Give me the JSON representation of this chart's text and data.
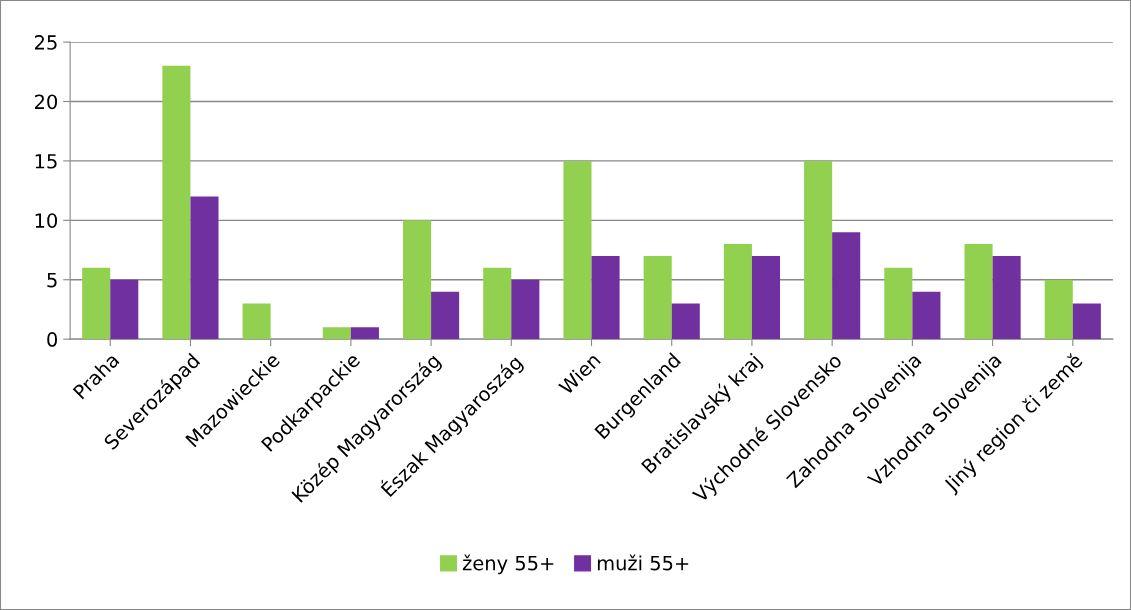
{
  "chart_data": {
    "type": "bar",
    "categories": [
      "Praha",
      "Severozápad",
      "Mazowieckie",
      "Podkarpackie",
      "Közép Magyarország",
      "Észak Magyaroszág",
      "Wien",
      "Burgenland",
      "Bratislavský kraj",
      "Východné Slovensko",
      "Zahodna Slovenija",
      "Vzhodna Slovenija",
      "Jiný region či země"
    ],
    "series": [
      {
        "name": "ženy 55+",
        "color": "#92d050",
        "values": [
          6,
          23,
          3,
          1,
          10,
          6,
          15,
          7,
          8,
          15,
          6,
          8,
          5
        ]
      },
      {
        "name": "muži 55+",
        "color": "#7030a0",
        "values": [
          5,
          12,
          0,
          1,
          4,
          5,
          7,
          3,
          7,
          9,
          4,
          7,
          3
        ]
      }
    ],
    "ylim": [
      0,
      25
    ],
    "yticks": [
      0,
      5,
      10,
      15,
      20,
      25
    ],
    "grid": "y",
    "legend": "bottom"
  }
}
